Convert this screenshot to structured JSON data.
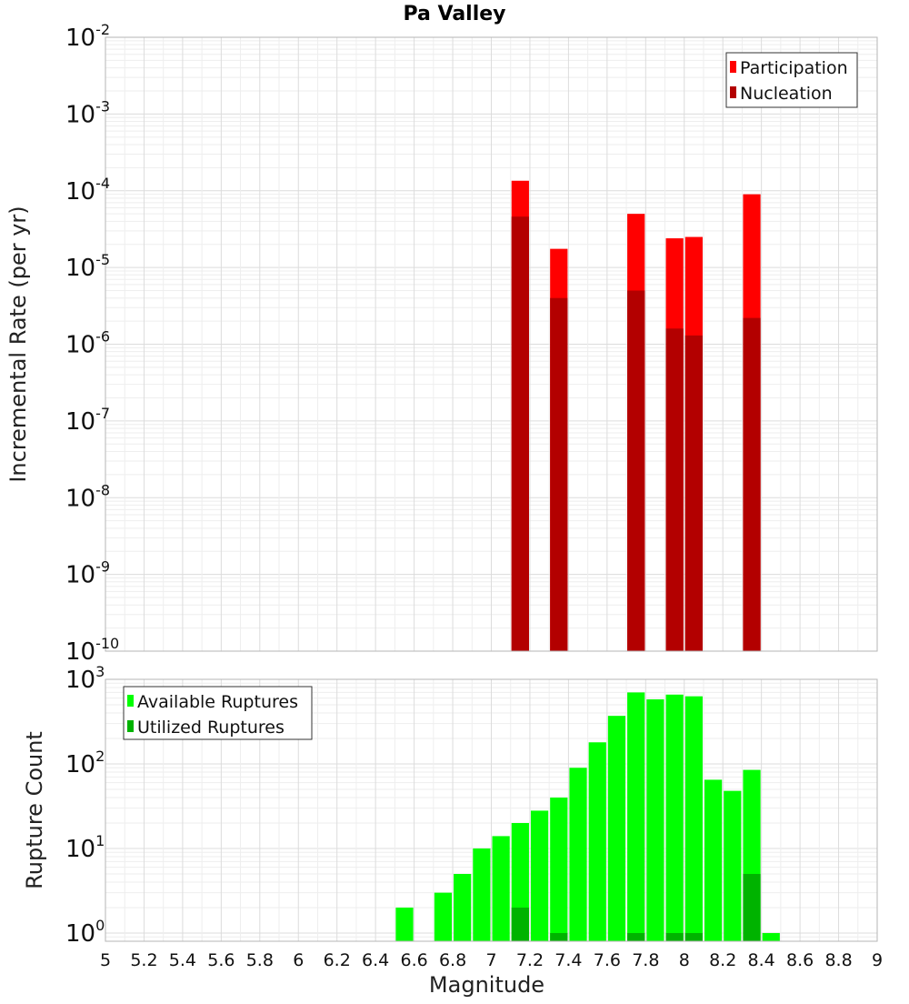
{
  "chart_data": [
    {
      "type": "bar",
      "title": "Pa Valley",
      "xlabel": "",
      "ylabel": "Incremental Rate (per yr)",
      "yscale": "log",
      "ylim": [
        1e-10,
        0.01
      ],
      "xlim": [
        5,
        9
      ],
      "y_ticks": [
        "10-10",
        "10-9",
        "10-8",
        "10-7",
        "10-6",
        "10-5",
        "10-4",
        "10-3",
        "10-2"
      ],
      "grid": true,
      "legend_position": "top-right",
      "bar_width": 0.1,
      "series": [
        {
          "name": "Participation",
          "color": "#ff0000",
          "points": [
            {
              "x": 7.15,
              "y": 0.000135
            },
            {
              "x": 7.35,
              "y": 1.75e-05
            },
            {
              "x": 7.75,
              "y": 5e-05
            },
            {
              "x": 7.95,
              "y": 2.4e-05
            },
            {
              "x": 8.05,
              "y": 2.5e-05
            },
            {
              "x": 8.35,
              "y": 9e-05
            }
          ]
        },
        {
          "name": "Nucleation",
          "color": "#b30000",
          "points": [
            {
              "x": 7.15,
              "y": 4.6e-05
            },
            {
              "x": 7.35,
              "y": 4e-06
            },
            {
              "x": 7.75,
              "y": 5e-06
            },
            {
              "x": 7.95,
              "y": 1.6e-06
            },
            {
              "x": 8.05,
              "y": 1.3e-06
            },
            {
              "x": 8.35,
              "y": 2.2e-06
            }
          ]
        }
      ]
    },
    {
      "type": "bar",
      "title": "",
      "xlabel": "Magnitude",
      "ylabel": "Rupture Count",
      "yscale": "log",
      "ylim": [
        0.8,
        1000
      ],
      "xlim": [
        5,
        9
      ],
      "y_ticks": [
        "10^0",
        "10^1",
        "10^2",
        "10^3"
      ],
      "x_ticks": [
        "5",
        "5.2",
        "5.4",
        "5.6",
        "5.8",
        "6",
        "6.2",
        "6.4",
        "6.6",
        "6.8",
        "7",
        "7.2",
        "7.4",
        "7.6",
        "7.8",
        "8",
        "8.2",
        "8.4",
        "8.6",
        "8.8",
        "9"
      ],
      "grid": true,
      "legend_position": "top-left",
      "bar_width": 0.1,
      "series": [
        {
          "name": "Available Ruptures",
          "color": "#00ff00",
          "points": [
            {
              "x": 6.55,
              "y": 2
            },
            {
              "x": 6.75,
              "y": 3
            },
            {
              "x": 6.85,
              "y": 5
            },
            {
              "x": 6.95,
              "y": 10
            },
            {
              "x": 7.05,
              "y": 14
            },
            {
              "x": 7.15,
              "y": 20
            },
            {
              "x": 7.25,
              "y": 28
            },
            {
              "x": 7.35,
              "y": 40
            },
            {
              "x": 7.45,
              "y": 90
            },
            {
              "x": 7.55,
              "y": 180
            },
            {
              "x": 7.65,
              "y": 370
            },
            {
              "x": 7.75,
              "y": 700
            },
            {
              "x": 7.85,
              "y": 580
            },
            {
              "x": 7.95,
              "y": 660
            },
            {
              "x": 8.05,
              "y": 630
            },
            {
              "x": 8.15,
              "y": 65
            },
            {
              "x": 8.25,
              "y": 48
            },
            {
              "x": 8.35,
              "y": 85
            },
            {
              "x": 8.45,
              "y": 1
            }
          ]
        },
        {
          "name": "Utilized Ruptures",
          "color": "#00b300",
          "points": [
            {
              "x": 7.15,
              "y": 2
            },
            {
              "x": 7.35,
              "y": 1
            },
            {
              "x": 7.75,
              "y": 1
            },
            {
              "x": 7.95,
              "y": 1
            },
            {
              "x": 8.05,
              "y": 1
            },
            {
              "x": 8.35,
              "y": 5
            }
          ]
        }
      ]
    }
  ]
}
